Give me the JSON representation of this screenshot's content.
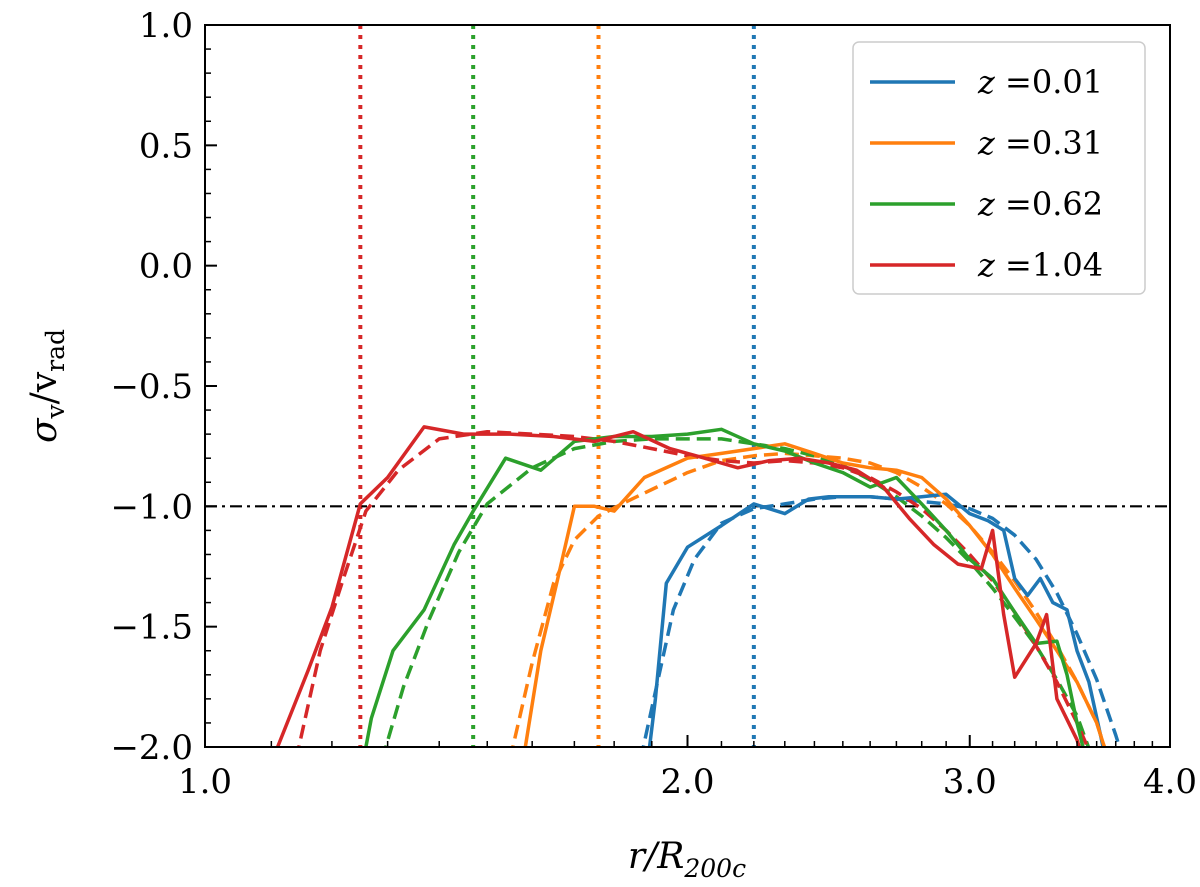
{
  "chart_data": {
    "type": "line",
    "xscale": "log",
    "xlim": [
      1.0,
      4.0
    ],
    "ylim": [
      -2.0,
      1.0
    ],
    "xticks": [
      {
        "value": 1.0,
        "label": "1.0"
      },
      {
        "value": 2.0,
        "label": "2.0"
      },
      {
        "value": 3.0,
        "label": "3.0"
      },
      {
        "value": 4.0,
        "label": "4.0"
      }
    ],
    "yticks": [
      {
        "value": 1.0,
        "label": "1.0"
      },
      {
        "value": 0.5,
        "label": "0.5"
      },
      {
        "value": 0.0,
        "label": "0.0"
      },
      {
        "value": -0.5,
        "label": "−0.5"
      },
      {
        "value": -1.0,
        "label": "−1.0"
      },
      {
        "value": -1.5,
        "label": "−1.5"
      },
      {
        "value": -2.0,
        "label": "−2.0"
      }
    ],
    "xlabel": {
      "main": "r/R",
      "sub": "200c"
    },
    "ylabel": {
      "sigma": "σ",
      "sigma_sub": "v",
      "slash": "/",
      "v": "v",
      "v_sub": "rad"
    },
    "hline": -1.0,
    "legend_position": "top-right",
    "series": [
      {
        "name": "z =0.01",
        "z_symbol": "z",
        "z_value": "=0.01",
        "color": "#1f77b4",
        "vline": 2.2,
        "solid": [
          [
            1.89,
            -2.05
          ],
          [
            1.91,
            -1.8
          ],
          [
            1.94,
            -1.32
          ],
          [
            2.0,
            -1.17
          ],
          [
            2.1,
            -1.08
          ],
          [
            2.2,
            -0.99
          ],
          [
            2.3,
            -1.03
          ],
          [
            2.38,
            -0.97
          ],
          [
            2.45,
            -0.96
          ],
          [
            2.52,
            -0.96
          ],
          [
            2.6,
            -0.96
          ],
          [
            2.7,
            -0.97
          ],
          [
            2.8,
            -0.96
          ],
          [
            2.9,
            -0.95
          ],
          [
            3.0,
            -1.03
          ],
          [
            3.08,
            -1.06
          ],
          [
            3.15,
            -1.1
          ],
          [
            3.2,
            -1.3
          ],
          [
            3.26,
            -1.37
          ],
          [
            3.32,
            -1.3
          ],
          [
            3.38,
            -1.4
          ],
          [
            3.45,
            -1.43
          ],
          [
            3.5,
            -1.6
          ],
          [
            3.56,
            -1.73
          ],
          [
            3.62,
            -1.95
          ],
          [
            3.66,
            -2.1
          ]
        ],
        "dashed": [
          [
            1.87,
            -2.05
          ],
          [
            1.92,
            -1.7
          ],
          [
            1.96,
            -1.43
          ],
          [
            2.02,
            -1.22
          ],
          [
            2.1,
            -1.07
          ],
          [
            2.2,
            -1.01
          ],
          [
            2.3,
            -0.99
          ],
          [
            2.4,
            -0.97
          ],
          [
            2.5,
            -0.96
          ],
          [
            2.6,
            -0.96
          ],
          [
            2.7,
            -0.97
          ],
          [
            2.8,
            -0.98
          ],
          [
            2.9,
            -0.99
          ],
          [
            3.0,
            -1.01
          ],
          [
            3.1,
            -1.05
          ],
          [
            3.2,
            -1.12
          ],
          [
            3.3,
            -1.22
          ],
          [
            3.4,
            -1.36
          ],
          [
            3.5,
            -1.53
          ],
          [
            3.6,
            -1.72
          ],
          [
            3.7,
            -1.95
          ],
          [
            3.74,
            -2.05
          ]
        ]
      },
      {
        "name": "z =0.31",
        "z_symbol": "z",
        "z_value": "=0.31",
        "color": "#ff7f0e",
        "vline": 1.76,
        "solid": [
          [
            1.58,
            -2.05
          ],
          [
            1.62,
            -1.6
          ],
          [
            1.66,
            -1.3
          ],
          [
            1.7,
            -1.0
          ],
          [
            1.75,
            -1.0
          ],
          [
            1.8,
            -1.02
          ],
          [
            1.88,
            -0.88
          ],
          [
            2.0,
            -0.8
          ],
          [
            2.1,
            -0.78
          ],
          [
            2.2,
            -0.76
          ],
          [
            2.3,
            -0.74
          ],
          [
            2.4,
            -0.78
          ],
          [
            2.5,
            -0.82
          ],
          [
            2.6,
            -0.84
          ],
          [
            2.7,
            -0.85
          ],
          [
            2.8,
            -0.88
          ],
          [
            2.9,
            -0.97
          ],
          [
            3.0,
            -1.08
          ],
          [
            3.1,
            -1.2
          ],
          [
            3.2,
            -1.34
          ],
          [
            3.3,
            -1.47
          ],
          [
            3.4,
            -1.6
          ],
          [
            3.5,
            -1.73
          ],
          [
            3.6,
            -1.9
          ],
          [
            3.66,
            -2.05
          ]
        ],
        "dashed": [
          [
            1.55,
            -2.05
          ],
          [
            1.6,
            -1.65
          ],
          [
            1.65,
            -1.32
          ],
          [
            1.7,
            -1.14
          ],
          [
            1.76,
            -1.04
          ],
          [
            1.82,
            -0.99
          ],
          [
            1.9,
            -0.93
          ],
          [
            2.0,
            -0.86
          ],
          [
            2.1,
            -0.81
          ],
          [
            2.2,
            -0.79
          ],
          [
            2.3,
            -0.78
          ],
          [
            2.4,
            -0.79
          ],
          [
            2.5,
            -0.8
          ],
          [
            2.6,
            -0.82
          ],
          [
            2.7,
            -0.86
          ],
          [
            2.8,
            -0.92
          ],
          [
            2.9,
            -0.99
          ],
          [
            3.0,
            -1.08
          ],
          [
            3.1,
            -1.19
          ],
          [
            3.2,
            -1.31
          ],
          [
            3.3,
            -1.44
          ],
          [
            3.4,
            -1.58
          ],
          [
            3.5,
            -1.73
          ],
          [
            3.6,
            -1.9
          ],
          [
            3.66,
            -2.05
          ]
        ]
      },
      {
        "name": "z =0.62",
        "z_symbol": "z",
        "z_value": "=0.62",
        "color": "#2ca02c",
        "vline": 1.47,
        "solid": [
          [
            1.26,
            -2.0
          ],
          [
            1.27,
            -1.88
          ],
          [
            1.31,
            -1.6
          ],
          [
            1.37,
            -1.43
          ],
          [
            1.43,
            -1.16
          ],
          [
            1.47,
            -1.02
          ],
          [
            1.54,
            -0.8
          ],
          [
            1.62,
            -0.85
          ],
          [
            1.7,
            -0.73
          ],
          [
            1.8,
            -0.71
          ],
          [
            1.9,
            -0.71
          ],
          [
            2.0,
            -0.7
          ],
          [
            2.1,
            -0.68
          ],
          [
            2.2,
            -0.74
          ],
          [
            2.3,
            -0.77
          ],
          [
            2.4,
            -0.82
          ],
          [
            2.5,
            -0.86
          ],
          [
            2.6,
            -0.92
          ],
          [
            2.7,
            -0.88
          ],
          [
            2.8,
            -0.99
          ],
          [
            2.9,
            -1.1
          ],
          [
            3.0,
            -1.22
          ],
          [
            3.1,
            -1.3
          ],
          [
            3.2,
            -1.44
          ],
          [
            3.3,
            -1.57
          ],
          [
            3.4,
            -1.56
          ],
          [
            3.45,
            -1.7
          ],
          [
            3.5,
            -1.9
          ],
          [
            3.56,
            -2.1
          ]
        ],
        "dashed": [
          [
            1.29,
            -2.05
          ],
          [
            1.33,
            -1.75
          ],
          [
            1.38,
            -1.47
          ],
          [
            1.44,
            -1.19
          ],
          [
            1.5,
            -0.99
          ],
          [
            1.6,
            -0.84
          ],
          [
            1.7,
            -0.76
          ],
          [
            1.8,
            -0.73
          ],
          [
            1.9,
            -0.72
          ],
          [
            2.0,
            -0.72
          ],
          [
            2.1,
            -0.72
          ],
          [
            2.2,
            -0.74
          ],
          [
            2.3,
            -0.76
          ],
          [
            2.4,
            -0.79
          ],
          [
            2.5,
            -0.83
          ],
          [
            2.6,
            -0.89
          ],
          [
            2.7,
            -0.96
          ],
          [
            2.8,
            -1.04
          ],
          [
            2.9,
            -1.13
          ],
          [
            3.0,
            -1.23
          ],
          [
            3.1,
            -1.34
          ],
          [
            3.2,
            -1.46
          ],
          [
            3.3,
            -1.58
          ],
          [
            3.4,
            -1.72
          ],
          [
            3.5,
            -1.87
          ],
          [
            3.58,
            -2.05
          ]
        ]
      },
      {
        "name": "z =1.04",
        "z_symbol": "z",
        "z_value": "=1.04",
        "color": "#d62728",
        "vline": 1.25,
        "solid": [
          [
            1.11,
            -2.0
          ],
          [
            1.16,
            -1.68
          ],
          [
            1.2,
            -1.42
          ],
          [
            1.25,
            -0.99
          ],
          [
            1.3,
            -0.88
          ],
          [
            1.37,
            -0.67
          ],
          [
            1.45,
            -0.7
          ],
          [
            1.55,
            -0.7
          ],
          [
            1.65,
            -0.71
          ],
          [
            1.75,
            -0.73
          ],
          [
            1.85,
            -0.69
          ],
          [
            1.95,
            -0.76
          ],
          [
            2.05,
            -0.8
          ],
          [
            2.15,
            -0.84
          ],
          [
            2.25,
            -0.81
          ],
          [
            2.35,
            -0.8
          ],
          [
            2.45,
            -0.82
          ],
          [
            2.55,
            -0.85
          ],
          [
            2.65,
            -0.92
          ],
          [
            2.75,
            -1.05
          ],
          [
            2.85,
            -1.16
          ],
          [
            2.95,
            -1.24
          ],
          [
            3.05,
            -1.26
          ],
          [
            3.1,
            -1.1
          ],
          [
            3.15,
            -1.45
          ],
          [
            3.2,
            -1.71
          ],
          [
            3.3,
            -1.57
          ],
          [
            3.35,
            -1.45
          ],
          [
            3.4,
            -1.8
          ],
          [
            3.5,
            -1.97
          ],
          [
            3.55,
            -2.1
          ]
        ],
        "dashed": [
          [
            1.14,
            -2.05
          ],
          [
            1.18,
            -1.6
          ],
          [
            1.22,
            -1.3
          ],
          [
            1.26,
            -1.02
          ],
          [
            1.32,
            -0.85
          ],
          [
            1.4,
            -0.72
          ],
          [
            1.5,
            -0.69
          ],
          [
            1.6,
            -0.7
          ],
          [
            1.7,
            -0.71
          ],
          [
            1.8,
            -0.73
          ],
          [
            1.9,
            -0.76
          ],
          [
            2.0,
            -0.79
          ],
          [
            2.1,
            -0.81
          ],
          [
            2.2,
            -0.82
          ],
          [
            2.3,
            -0.81
          ],
          [
            2.4,
            -0.82
          ],
          [
            2.5,
            -0.84
          ],
          [
            2.6,
            -0.88
          ],
          [
            2.7,
            -0.94
          ],
          [
            2.8,
            -1.01
          ],
          [
            2.9,
            -1.1
          ],
          [
            3.0,
            -1.2
          ],
          [
            3.1,
            -1.31
          ],
          [
            3.2,
            -1.44
          ],
          [
            3.3,
            -1.58
          ],
          [
            3.4,
            -1.73
          ],
          [
            3.5,
            -1.9
          ],
          [
            3.58,
            -2.05
          ]
        ]
      }
    ]
  }
}
